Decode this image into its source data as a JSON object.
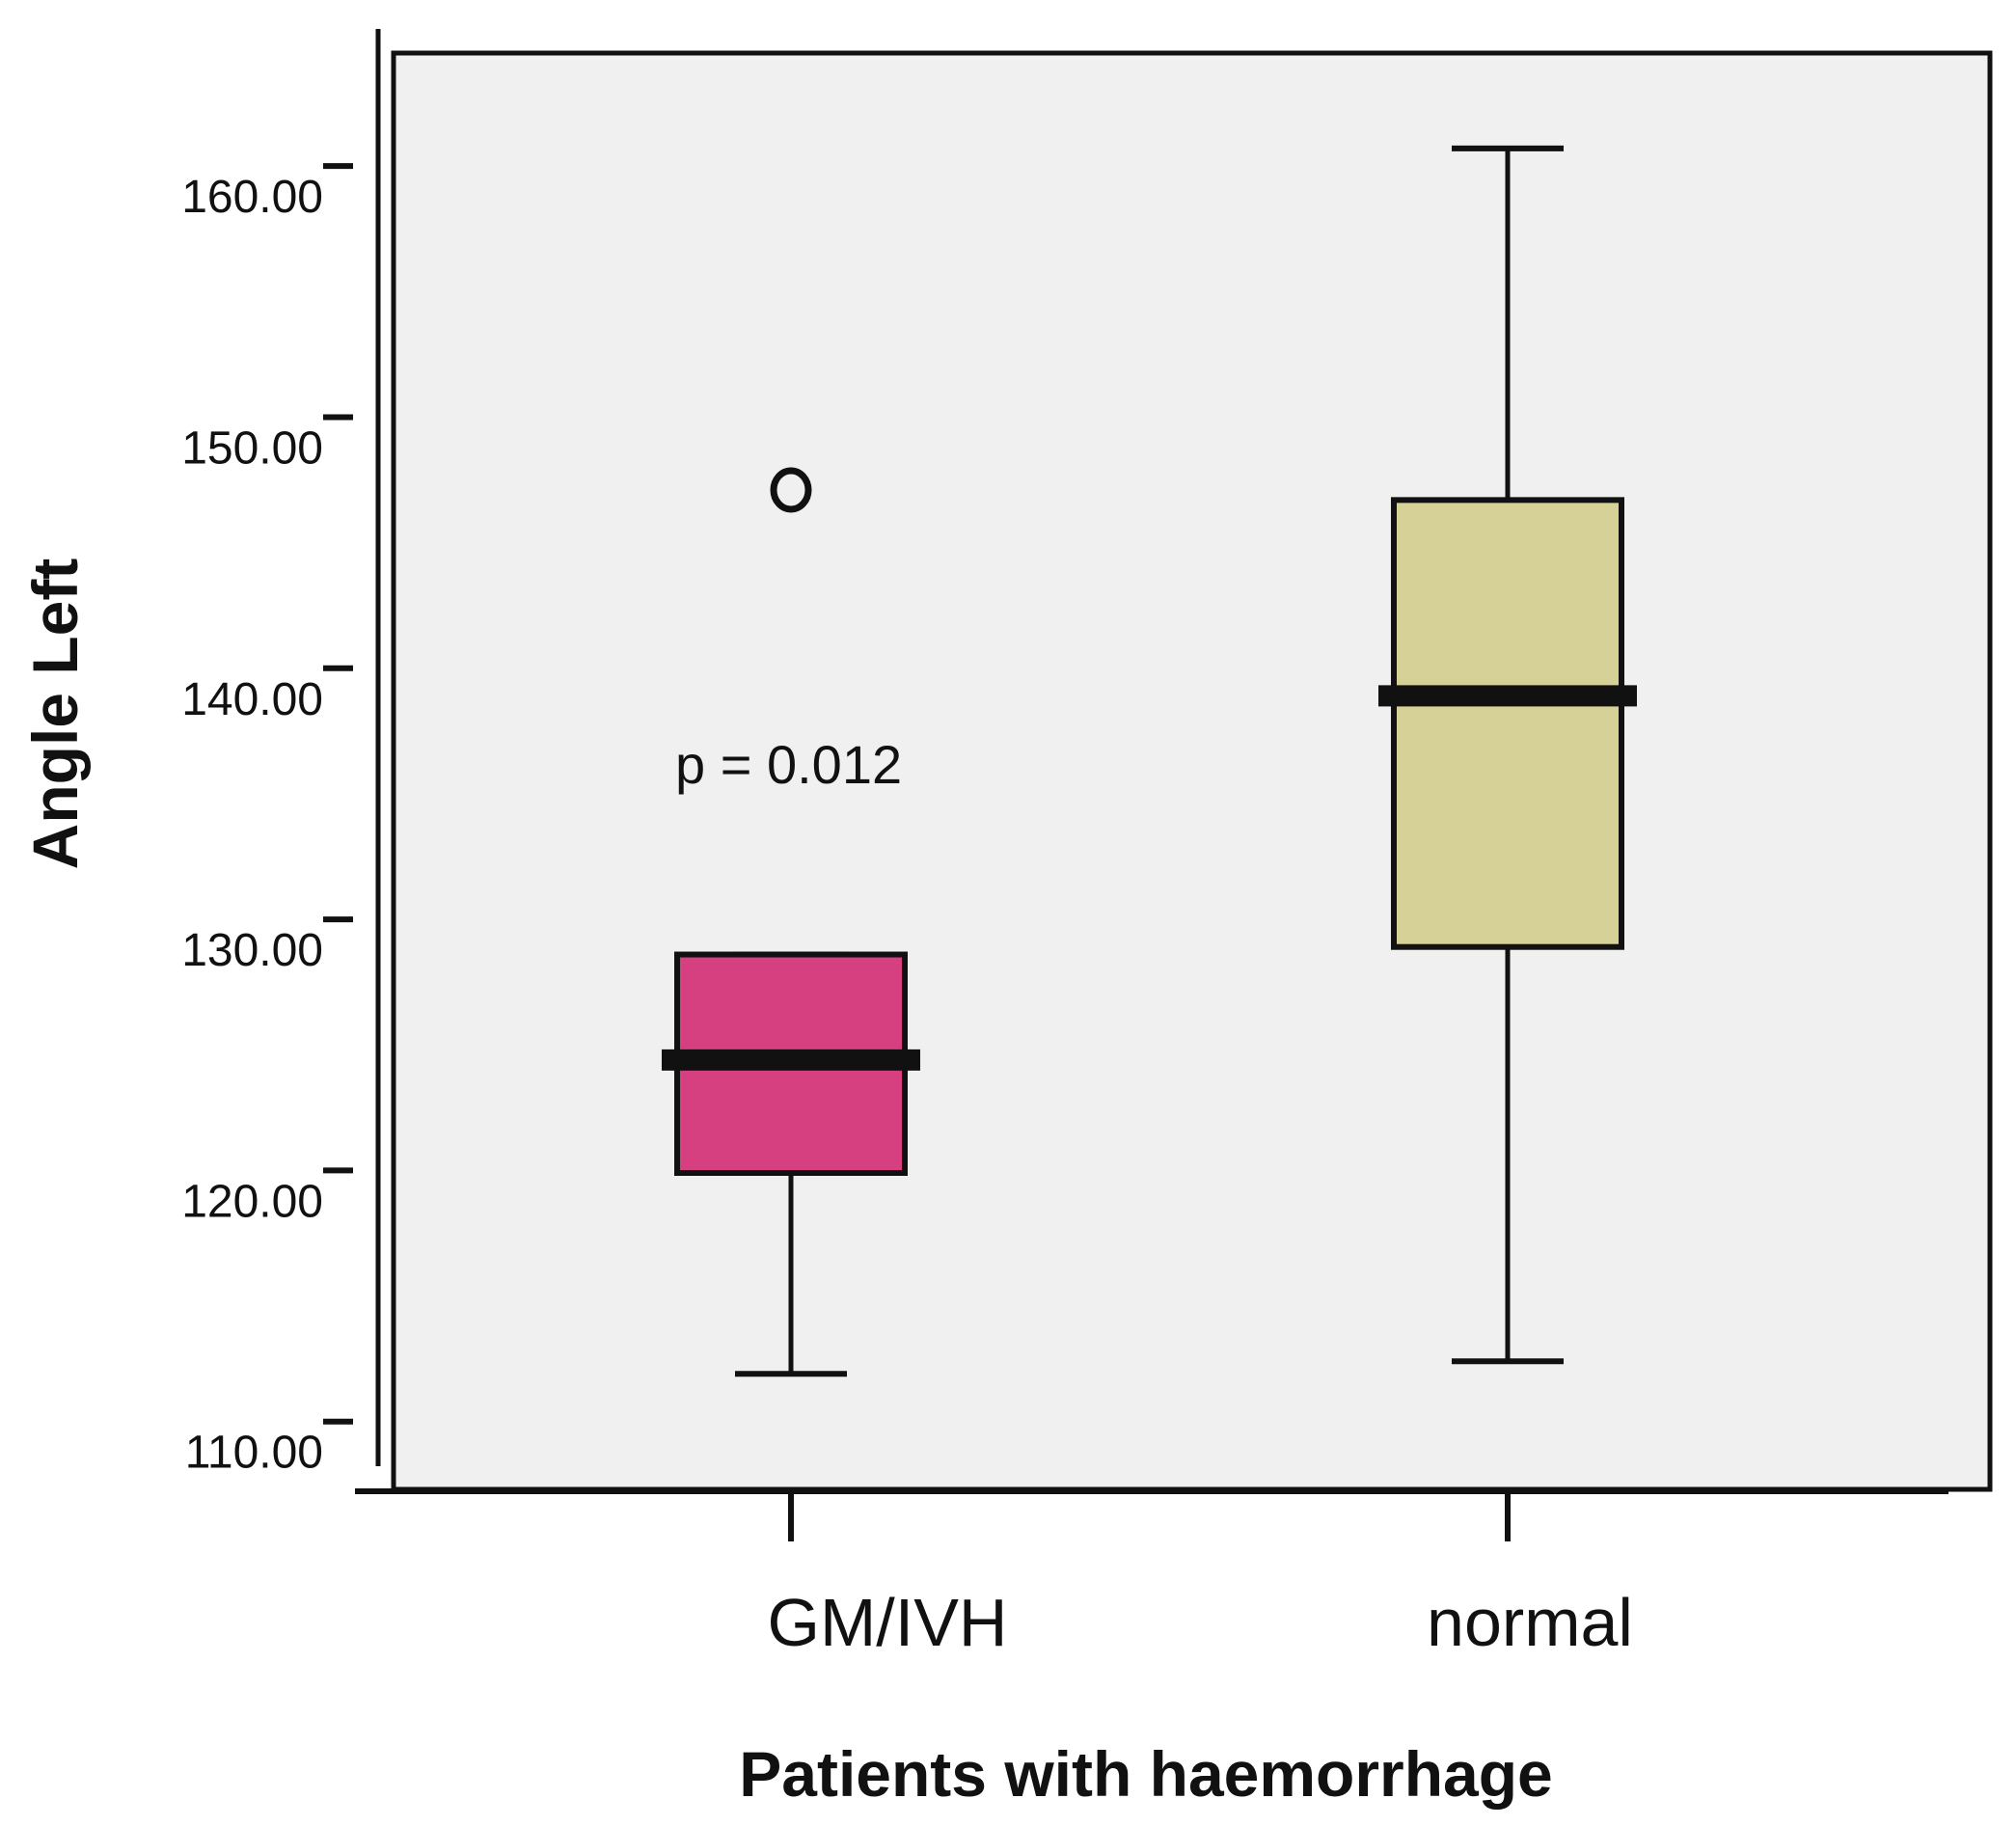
{
  "chart_data": {
    "type": "boxplot",
    "ylabel": "Angle Left",
    "xlabel": "Patients with haemorrhage",
    "ylim": [
      107.3,
      164.5
    ],
    "yticks": [
      110,
      120,
      130,
      140,
      150,
      160
    ],
    "ytick_labels": [
      "110.00",
      "120.00",
      "130.00",
      "140.00",
      "150.00",
      "160.00"
    ],
    "annotation": "p = 0.012",
    "groups": [
      {
        "label": "GM/IVH",
        "whisker_low": 111.9,
        "q1": 119.9,
        "median": 124.4,
        "q3": 128.6,
        "whisker_high": 128.6,
        "outliers": [
          147.1
        ],
        "color": "#d63f80"
      },
      {
        "label": "normal",
        "whisker_low": 112.4,
        "q1": 128.9,
        "median": 138.9,
        "q3": 146.7,
        "whisker_high": 160.7,
        "outliers": [],
        "color": "#d6d197"
      }
    ],
    "plot_background": "#f0f0f0",
    "line_color": "#111111"
  }
}
